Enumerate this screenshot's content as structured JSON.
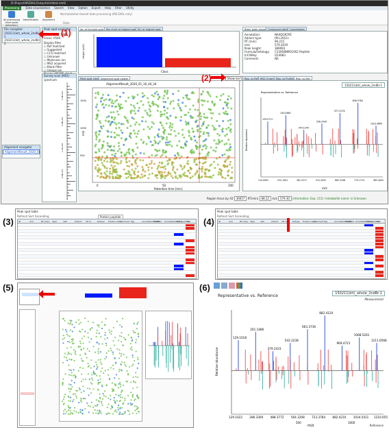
{
  "panel_labels": [
    "(1)",
    "(2)",
    "(3)",
    "(4)",
    "(5)",
    "(6)"
  ],
  "callouts": {
    "c1": "(1)",
    "c2": "(2)"
  },
  "app": {
    "titlebar": "D:\\Project\\MSDIAL\\Output\\Untitled.mtd2",
    "menu": [
      "Processing",
      "Data visualization",
      "Search",
      "View",
      "Option",
      "Export",
      "Help",
      "Filter",
      "Utility"
    ],
    "ribbon_buttons": [
      "All processing (from peak detection)",
      "Identification",
      "Alignment"
    ],
    "ribbon_group": "Data",
    "toolbar_hint": "Normalization-based data processing (MS-DIAL only)"
  },
  "file_nav": {
    "header": "File navigator",
    "files": [
      "150211(kit)_whole_2ndBr-1",
      "150211(kit)_whole_2ndBr-2"
    ]
  },
  "peak_spot_nav": {
    "header": "Peak spot navigator",
    "peak_mode_label": "Peak mode: 5895",
    "focus_label": "Focus: 0540",
    "filters": [
      "Display filter",
      "Ref matched",
      "Suggested",
      "CCS matched",
      "Unknown",
      "Molecular ion",
      "MS2 acquired",
      "Blank filter",
      "Unique ion",
      "Display MS/MS chart filter"
    ],
    "survey_header": "Survey scan (MS1) spectrum",
    "survey_ticks": [
      "5.6E+03",
      "3.0E+04",
      "1.1E+04",
      "6.6E+03"
    ]
  },
  "align_nav": {
    "header": "Alignment navigator",
    "files": [
      "AlignmentResult_2020_01"
    ]
  },
  "bar_tabs": [
    "Ion of focused spot",
    "Bar chart of aligned spot",
    "EIC of aligned spot"
  ],
  "bar_chart": {
    "ylabel": "Height (x10)",
    "xlabel": "Class",
    "categories": [
      "A",
      "B"
    ],
    "values": [
      100,
      30
    ],
    "colors": [
      "#0018ff",
      "#e8241b"
    ]
  },
  "props": {
    "tabs": [
      "Basic peak property",
      "Compound detail",
      "Coordinates"
    ],
    "rows": [
      [
        "Annotation:",
        "NA4QGK5PZ"
      ],
      [
        "Adduct type:",
        "[M+2H]2+"
      ],
      [
        "RT (min):",
        "99.215"
      ],
      [
        "m/z:",
        "579.3019"
      ],
      [
        "Peak height:",
        "389093"
      ],
      [
        "Formula/Ontology:",
        "C33H58N9O10S2 Peptide"
      ],
      [
        "InChIKey:",
        "Q14683"
      ],
      [
        "Comment:",
        "NA"
      ]
    ]
  },
  "spot_tabs": [
    "Peak spot viewer",
    "Alignment spot viewer"
  ],
  "scatter": {
    "title": "AlignmentResult_2020_01_16_44_34",
    "ylabel": "m/z",
    "xlabel": "Retention time [min]",
    "xticks": [
      "0",
      "50",
      "100"
    ],
    "yticks": [
      "1500",
      "1000",
      "500"
    ]
  },
  "show_ion_table": "Show ion table",
  "spectrum_tabs": [
    "Rep. vs Ref.",
    "MS2 Chrom.",
    "Rep. vs Purified",
    "Rep. vs Ref."
  ],
  "measurement_dropdown": "150211(kit)_whole_2ndBr-1",
  "spectrum": {
    "title": "Representative vs. Reference",
    "ylabel": "Relative abundance",
    "xlabel": "m/z",
    "peak_labels": [
      "129.0711",
      "230.0860",
      "344.1240",
      "528.3439",
      "677.5276",
      "808.5784",
      "1023.4665"
    ],
    "x_ticks": [
      "110.0902",
      "232.1091",
      "381.2217",
      "512.2922",
      "663.2348",
      "779.1774",
      "963.4002"
    ],
    "bottom_tick": "1000"
  },
  "statusbar": {
    "fields": [
      "Region focus by:",
      "ID",
      "36657",
      "RT(min)",
      "88.22",
      "m/z",
      "579.30"
    ],
    "note": "Information: Exp. CCS / metabolite name: is Unknown"
  },
  "table_panels": {
    "title": "Peak spot table",
    "cols": [
      "ID",
      "m/z",
      "RT (min)",
      "Type",
      "S/N",
      "Adduct",
      "Fill %",
      "Isotope",
      "Protein name",
      "Comment",
      "Tag",
      "Annotation method",
      "MS/MS",
      "Annotation score",
      "MSP spectrum",
      "Bar chart"
    ],
    "sort_note": "Refresh Sort Ascending",
    "filter_label": "Protein peptide"
  },
  "panel6": {
    "dropdown": "150211(kit)_whole_2ndBr-1",
    "measurement": "Measurement",
    "reference": "Reference",
    "title": "Representative vs. Reference",
    "ylabel": "Relative abundance",
    "xlabel": "m/z",
    "peak_labels": [
      "129.1018",
      "201.1486",
      "379.2433",
      "542.2238",
      "663.3736",
      "882.4120",
      "969.4721",
      "1068.5261",
      "1211.6568"
    ],
    "x_ticks": [
      "129.1022",
      "286.3300",
      "488.3772",
      "564.3208",
      "723.3784",
      "882.4210",
      "1034.5411",
      "1210.6559"
    ],
    "mid_tick": "500",
    "end_tick": "1000"
  }
}
